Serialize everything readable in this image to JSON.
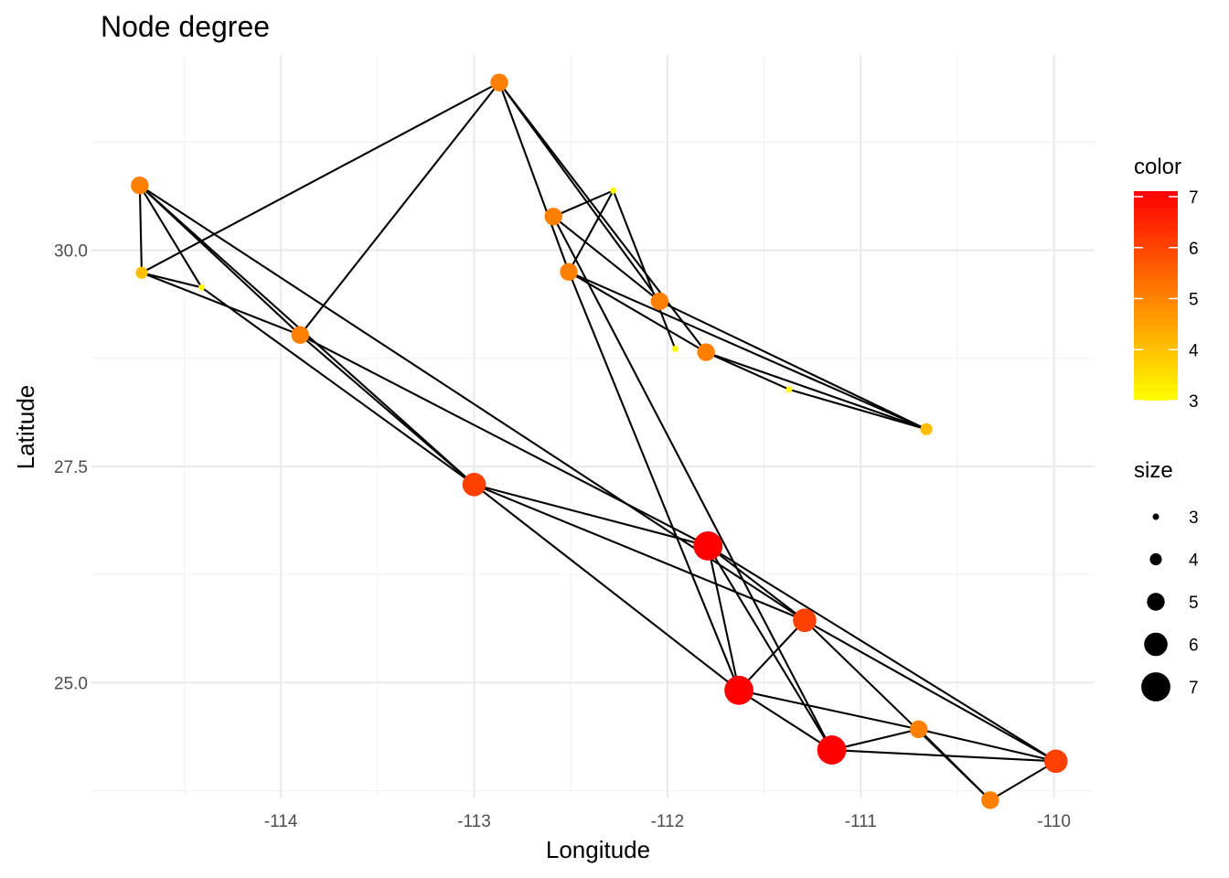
{
  "chart_data": {
    "type": "scatter",
    "subtype": "network",
    "title": "Node degree",
    "xlabel": "Longitude",
    "ylabel": "Latitude",
    "xlim": [
      -114.98,
      -109.79
    ],
    "ylim": [
      23.66,
      32.26
    ],
    "x_ticks": [
      -114,
      -113,
      -112,
      -111,
      -110
    ],
    "x_tick_labels": [
      "-114",
      "-113",
      "-112",
      "-111",
      "-110"
    ],
    "y_ticks": [
      25.0,
      27.5,
      30.0
    ],
    "y_tick_labels": [
      "25.0",
      "27.5",
      "30.0"
    ],
    "grid": true,
    "color_scale": {
      "low": "#FFFF00",
      "high": "#FF0000",
      "min": 3,
      "max": 7
    },
    "legend": {
      "position": "right",
      "color": {
        "title": "color",
        "breaks": [
          3,
          4,
          5,
          6,
          7
        ],
        "labels": [
          "3",
          "4",
          "5",
          "6",
          "7"
        ]
      },
      "size": {
        "title": "size",
        "breaks": [
          3,
          4,
          5,
          6,
          7
        ],
        "labels": [
          "3",
          "4",
          "5",
          "6",
          "7"
        ]
      }
    },
    "nodes": [
      {
        "x": -114.73,
        "y": 30.75,
        "degree": 5
      },
      {
        "x": -114.72,
        "y": 29.74,
        "degree": 4
      },
      {
        "x": -114.41,
        "y": 29.57,
        "degree": 3
      },
      {
        "x": -113.9,
        "y": 29.02,
        "degree": 5
      },
      {
        "x": -112.87,
        "y": 31.94,
        "degree": 5
      },
      {
        "x": -113.0,
        "y": 27.29,
        "degree": 6
      },
      {
        "x": -112.59,
        "y": 30.39,
        "degree": 5
      },
      {
        "x": -112.28,
        "y": 30.69,
        "degree": 3
      },
      {
        "x": -112.51,
        "y": 29.75,
        "degree": 5
      },
      {
        "x": -112.04,
        "y": 29.41,
        "degree": 5
      },
      {
        "x": -111.96,
        "y": 28.86,
        "degree": 3
      },
      {
        "x": -111.8,
        "y": 28.82,
        "degree": 5
      },
      {
        "x": -111.37,
        "y": 28.39,
        "degree": 3
      },
      {
        "x": -110.66,
        "y": 27.93,
        "degree": 4
      },
      {
        "x": -111.79,
        "y": 26.58,
        "degree": 7
      },
      {
        "x": -111.29,
        "y": 25.72,
        "degree": 6
      },
      {
        "x": -111.63,
        "y": 24.91,
        "degree": 7
      },
      {
        "x": -111.15,
        "y": 24.22,
        "degree": 7
      },
      {
        "x": -110.7,
        "y": 24.46,
        "degree": 5
      },
      {
        "x": -109.99,
        "y": 24.09,
        "degree": 6
      },
      {
        "x": -110.33,
        "y": 23.64,
        "degree": 5
      }
    ],
    "edges": [
      [
        0,
        1
      ],
      [
        0,
        3
      ],
      [
        0,
        2
      ],
      [
        0,
        5
      ],
      [
        0,
        15
      ],
      [
        1,
        4
      ],
      [
        1,
        2
      ],
      [
        1,
        3
      ],
      [
        2,
        5
      ],
      [
        3,
        4
      ],
      [
        3,
        5
      ],
      [
        3,
        14
      ],
      [
        4,
        8
      ],
      [
        4,
        9
      ],
      [
        4,
        11
      ],
      [
        5,
        14
      ],
      [
        5,
        16
      ],
      [
        5,
        15
      ],
      [
        6,
        7
      ],
      [
        6,
        9
      ],
      [
        6,
        17
      ],
      [
        7,
        8
      ],
      [
        7,
        10
      ],
      [
        8,
        11
      ],
      [
        8,
        13
      ],
      [
        8,
        16
      ],
      [
        9,
        13
      ],
      [
        11,
        12
      ],
      [
        11,
        13
      ],
      [
        12,
        13
      ],
      [
        14,
        16
      ],
      [
        14,
        17
      ],
      [
        14,
        19
      ],
      [
        14,
        15
      ],
      [
        15,
        16
      ],
      [
        15,
        20
      ],
      [
        15,
        19
      ],
      [
        16,
        17
      ],
      [
        16,
        18
      ],
      [
        17,
        18
      ],
      [
        17,
        19
      ],
      [
        18,
        20
      ],
      [
        18,
        19
      ],
      [
        19,
        20
      ]
    ]
  }
}
